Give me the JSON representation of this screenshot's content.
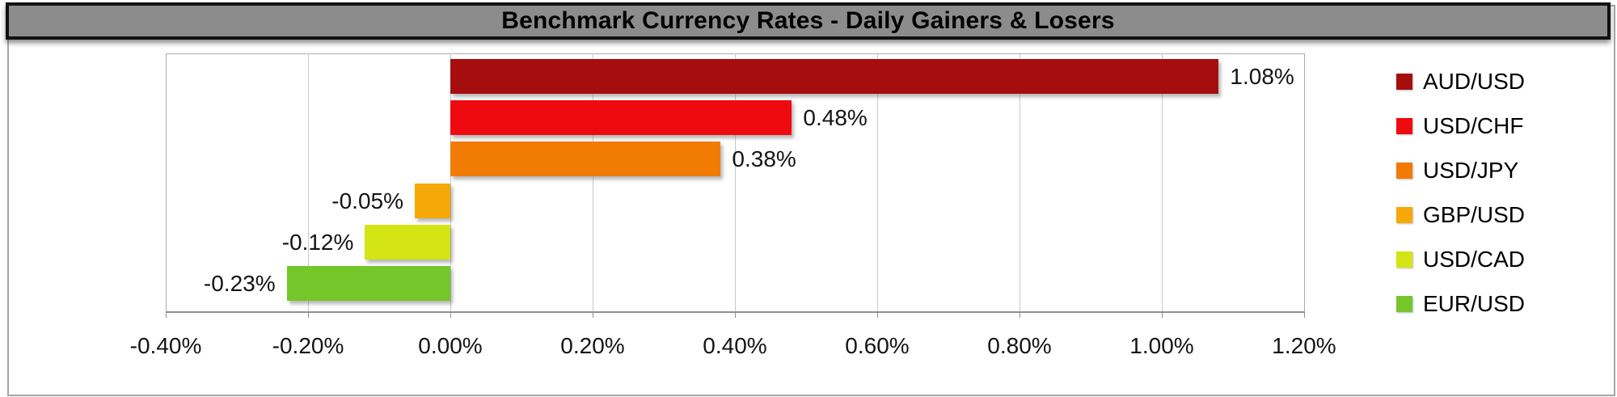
{
  "chart_data": {
    "type": "bar",
    "orientation": "horizontal",
    "title": "Benchmark Currency Rates - Daily Gainers & Losers",
    "categories": [
      "AUD/USD",
      "USD/CHF",
      "USD/JPY",
      "GBP/USD",
      "USD/CAD",
      "EUR/USD"
    ],
    "values": [
      1.08,
      0.48,
      0.38,
      -0.05,
      -0.12,
      -0.23
    ],
    "data_labels": [
      "1.08%",
      "0.48%",
      "0.38%",
      "-0.05%",
      "-0.12%",
      "-0.23%"
    ],
    "bar_colors": [
      "#a60d0e",
      "#ee0a0f",
      "#f17b05",
      "#f5a807",
      "#d5e414",
      "#75c62a"
    ],
    "x_tick_labels": [
      "-0.40%",
      "-0.20%",
      "0.00%",
      "0.20%",
      "0.40%",
      "0.60%",
      "0.80%",
      "1.00%",
      "1.20%"
    ],
    "xlim": [
      -0.4,
      1.2
    ],
    "x_tick_step": 0.2,
    "xlabel": "",
    "ylabel": "",
    "grid": true,
    "legend_position": "right",
    "legend": [
      {
        "label": "AUD/USD",
        "color": "#a60d0e"
      },
      {
        "label": "USD/CHF",
        "color": "#ee0a0f"
      },
      {
        "label": "USD/JPY",
        "color": "#f17b05"
      },
      {
        "label": "GBP/USD",
        "color": "#f5a807"
      },
      {
        "label": "USD/CAD",
        "color": "#d5e414"
      },
      {
        "label": "EUR/USD",
        "color": "#75c62a"
      }
    ]
  },
  "colors": {
    "title_bar_bg": "#8c8c8c",
    "title_bar_border": "#111111",
    "frame_border": "#a6a6a6",
    "plot_border": "#adadad",
    "gridline": "#c8c8c8",
    "axis_line": "#8f8f8f",
    "label_text": "#141414",
    "background": "#ffffff"
  }
}
